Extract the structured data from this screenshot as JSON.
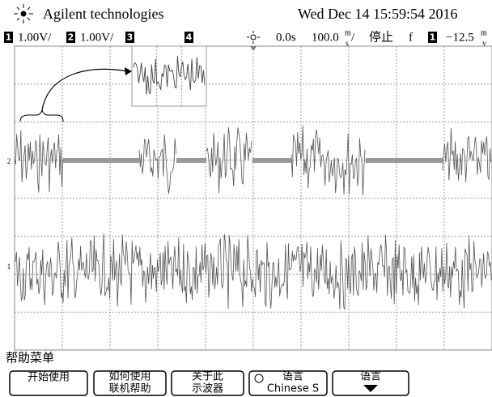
{
  "header": {
    "brand": "Agilent technologies",
    "datetime": "Wed Dec 14 15:59:54 2016"
  },
  "status": {
    "ch1": "1",
    "ch1_scale": "1.00V/",
    "ch2": "2",
    "ch2_scale": "1.00V/",
    "ch3": "3",
    "ch4": "4",
    "delay": "0.0s",
    "timebase": "100.0",
    "timebase_unit_top": "m",
    "timebase_unit_bottom": "s",
    "timebase_slash": "/",
    "run_state": "停止",
    "trigger_mode": "f",
    "trigger_source": "1",
    "trigger_level": "−12.5",
    "trigger_unit_top": "m",
    "trigger_unit_bottom": "v"
  },
  "markers": {
    "ch2": "2",
    "ch1": "1"
  },
  "menu": {
    "title": "帮助菜单",
    "buttons": [
      [
        "开始使用"
      ],
      [
        "如何使用",
        "联机帮助"
      ],
      [
        "关于此",
        "示波器"
      ],
      [
        "语言",
        "Chinese S"
      ],
      [
        "语言"
      ]
    ]
  }
}
